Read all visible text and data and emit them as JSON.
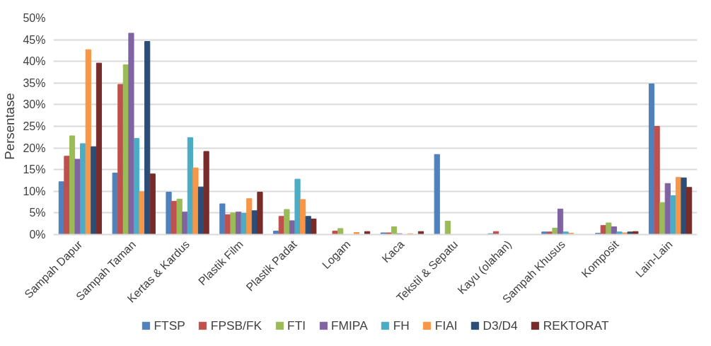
{
  "chart_data": {
    "type": "bar",
    "ylabel": "Persentase",
    "categories": [
      "Sampah Dapur",
      "Sampah Taman",
      "Kertas & Kardus",
      "Plastik Film",
      "Plastik Padat",
      "Logam",
      "Kaca",
      "Tekstil & Sepatu",
      "Kayu (olahan)",
      "Sampah Khusus",
      "Komposit",
      "Lain-Lain"
    ],
    "series": [
      {
        "name": "FTSP",
        "color": "#4f81bd",
        "values": [
          12.2,
          14.2,
          9.8,
          7.1,
          0.8,
          0,
          0.4,
          18.5,
          0.2,
          0.6,
          0.3,
          34.8
        ]
      },
      {
        "name": "FPSB/FK",
        "color": "#c0504d",
        "values": [
          18.1,
          34.7,
          7.7,
          4.6,
          4.2,
          0.8,
          0.4,
          0,
          0.7,
          0.6,
          2.1,
          25
        ]
      },
      {
        "name": "FTI",
        "color": "#9bbb59",
        "values": [
          22.8,
          39.2,
          8.2,
          5.0,
          5.8,
          1.4,
          1.8,
          3.1,
          0,
          1.5,
          2.7,
          7.4
        ]
      },
      {
        "name": "FMIPA",
        "color": "#8064a2",
        "values": [
          17.4,
          46.5,
          5.2,
          5.2,
          3.2,
          0,
          0.2,
          0,
          0,
          5.9,
          1.8,
          11.8
        ]
      },
      {
        "name": "FH",
        "color": "#4bacc6",
        "values": [
          21,
          22.2,
          22.4,
          4.9,
          12.8,
          0,
          null,
          0,
          0,
          0.6,
          0.6,
          9.0
        ]
      },
      {
        "name": "FIAI",
        "color": "#f79646",
        "values": [
          42.7,
          9.9,
          15.4,
          8.3,
          8.1,
          0.5,
          0.2,
          0,
          0,
          0.3,
          0.4,
          13.2
        ]
      },
      {
        "name": "D3/D4",
        "color": "#2c4d75",
        "values": [
          20.3,
          44.6,
          11.0,
          5.5,
          4.2,
          0,
          0,
          0,
          0,
          null,
          0.6,
          13.1
        ]
      },
      {
        "name": "REKTORAT",
        "color": "#772c2a",
        "values": [
          39.6,
          14.0,
          19.2,
          9.8,
          3.6,
          0.7,
          0.7,
          0,
          0,
          null,
          0.7,
          10.9
        ]
      }
    ],
    "ylim": [
      0,
      50
    ],
    "yticks": [
      {
        "value": 0,
        "label": "0%"
      },
      {
        "value": 5,
        "label": "5%"
      },
      {
        "value": 10,
        "label": "10%"
      },
      {
        "value": 15,
        "label": "15%"
      },
      {
        "value": 20,
        "label": "20%"
      },
      {
        "value": 25,
        "label": "25%"
      },
      {
        "value": 30,
        "label": "30%"
      },
      {
        "value": 35,
        "label": "35%"
      },
      {
        "value": 40,
        "label": "40%"
      },
      {
        "value": 45,
        "label": "45%"
      },
      {
        "value": 50,
        "label": "50%"
      }
    ],
    "grid": "y",
    "legend": "bottom"
  }
}
